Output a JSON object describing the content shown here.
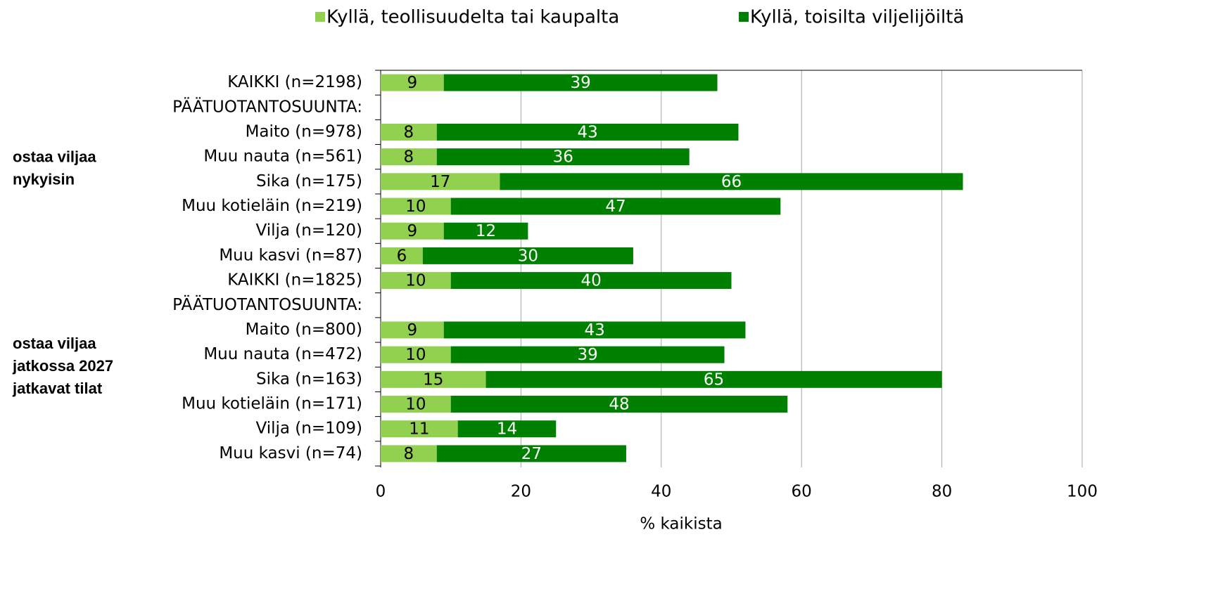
{
  "chart_data": {
    "type": "stacked_barh",
    "legend": "top",
    "xlabel": "% kaikista",
    "xlim": [
      0,
      100
    ],
    "xticks": [
      0,
      20,
      40,
      60,
      80,
      100
    ],
    "grid": true,
    "categories": [
      "KAIKKI (n=2198)",
      "PÄÄTUOTANTOSUUNTA:",
      "Maito (n=978)",
      "Muu nauta (n=561)",
      "Sika (n=175)",
      "Muu kotieläin (n=219)",
      "Vilja (n=120)",
      "Muu kasvi (n=87)",
      "KAIKKI (n=1825)",
      "PÄÄTUOTANTOSUUNTA:",
      "Maito (n=800)",
      "Muu nauta (n=472)",
      "Sika (n=163)",
      "Muu kotieläin (n=171)",
      "Vilja (n=109)",
      "Muu kasvi (n=74)"
    ],
    "groups": [
      {
        "label": [
          "ostaa viljaa",
          "nykyisin"
        ],
        "rows": [
          0,
          7
        ]
      },
      {
        "label": [
          "ostaa viljaa",
          "jatkossa 2027",
          "jatkavat tilat"
        ],
        "rows": [
          8,
          15
        ]
      }
    ],
    "series": [
      {
        "name": "Kyllä, teollisuudelta tai kaupalta",
        "color": "#92d050",
        "label_color": "#000000",
        "values": [
          9,
          null,
          8,
          8,
          17,
          10,
          9,
          6,
          10,
          null,
          9,
          10,
          15,
          10,
          11,
          8
        ]
      },
      {
        "name": "Kyllä, toisilta viljelijöiltä",
        "color": "#008000",
        "label_color": "#ffffff",
        "values": [
          39,
          null,
          43,
          36,
          66,
          47,
          12,
          30,
          40,
          null,
          43,
          39,
          65,
          48,
          14,
          27
        ]
      }
    ]
  }
}
